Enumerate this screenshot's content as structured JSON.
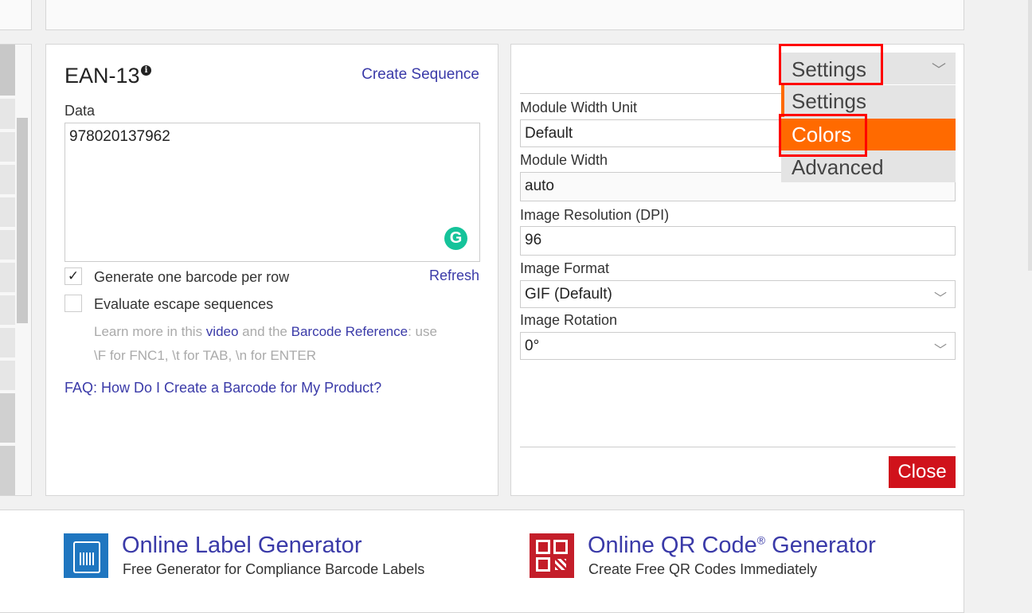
{
  "barcode": {
    "title": "EAN-13",
    "create_sequence": "Create Sequence",
    "data_label": "Data",
    "data_value": "978020137962",
    "opt_one_per_row": "Generate one barcode per row",
    "opt_one_per_row_checked": true,
    "refresh": "Refresh",
    "opt_escape": "Evaluate escape sequences",
    "opt_escape_checked": false,
    "help_prefix": "Learn more in this ",
    "help_video": "video",
    "help_mid": " and the ",
    "help_ref": "Barcode Reference",
    "help_suffix": ": use",
    "help_line2": "\\F for FNC1, \\t for TAB, \\n for ENTER",
    "faq": "FAQ: How Do I Create a Barcode for My Product?"
  },
  "settings": {
    "selected": "Settings",
    "options": [
      "Settings",
      "Colors",
      "Advanced"
    ],
    "highlighted": "Colors",
    "module_width_unit_label": "Module Width Unit",
    "module_width_unit": "Default",
    "module_width_label": "Module Width",
    "module_width": "auto",
    "dpi_label": "Image Resolution (DPI)",
    "dpi": "96",
    "format_label": "Image Format",
    "format": "GIF (Default)",
    "rotation_label": "Image Rotation",
    "rotation": "0°",
    "close": "Close"
  },
  "promo": [
    {
      "title": "Online Label Generator",
      "subtitle": "Free Generator for Compliance Barcode Labels"
    },
    {
      "title": "Online QR Code",
      "title_sup": "®",
      "title_suffix": " Generator",
      "subtitle": "Create Free QR Codes Immediately"
    }
  ],
  "colors": {
    "accent": "#ff6a00",
    "link": "#3a3aa8",
    "close": "#d0121b",
    "highlight_box": "#ff0000",
    "label_icon": "#1f76c0",
    "qr_icon": "#c41e2a"
  }
}
